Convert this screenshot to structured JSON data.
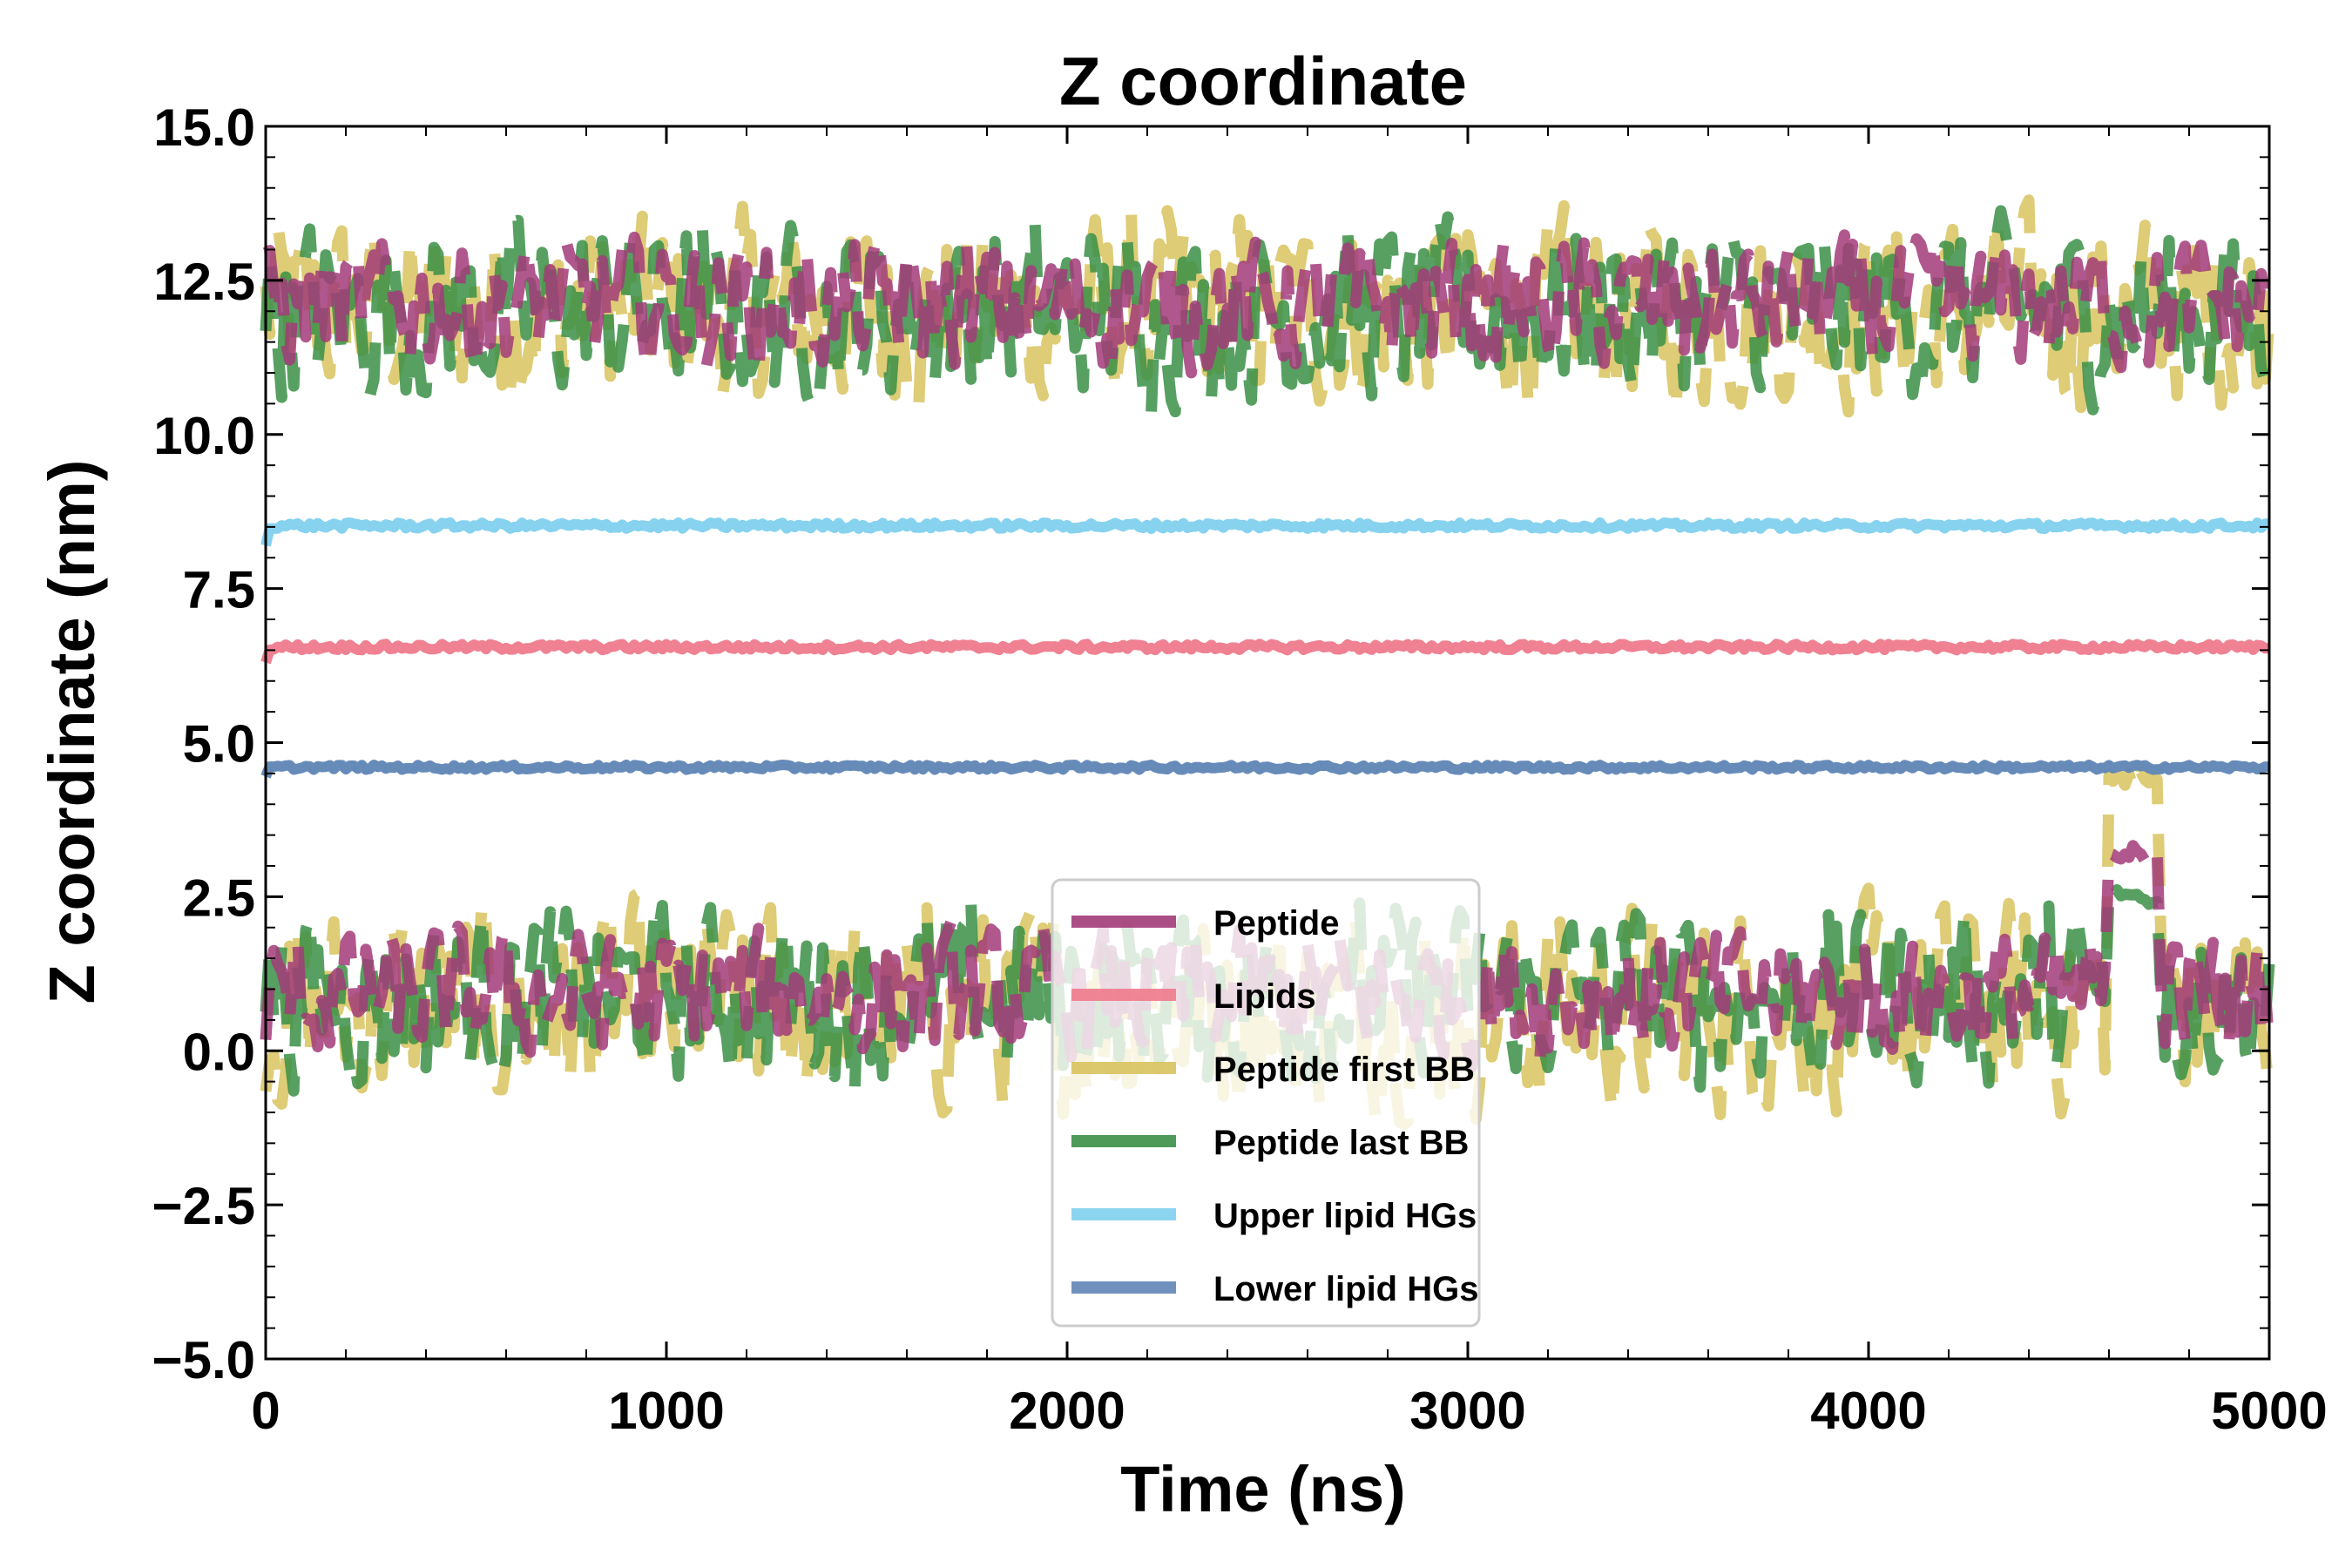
{
  "chart_data": {
    "type": "line",
    "title": "Z coordinate",
    "xlabel": "Time (ns)",
    "ylabel": "Z coordinate (nm)",
    "xlim": [
      0,
      5000
    ],
    "ylim": [
      -5.0,
      15.0
    ],
    "xticks": [
      0,
      1000,
      2000,
      3000,
      4000,
      5000
    ],
    "xtick_labels": [
      "0",
      "1000",
      "2000",
      "3000",
      "4000",
      "5000"
    ],
    "yticks": [
      -5.0,
      -2.5,
      0.0,
      2.5,
      5.0,
      7.5,
      10.0,
      12.5,
      15.0
    ],
    "ytick_labels": [
      "−5.0",
      "−2.5",
      "0.0",
      "2.5",
      "5.0",
      "7.5",
      "10.0",
      "12.5",
      "15.0"
    ],
    "grid": false,
    "legend_position": "lower-center",
    "series": [
      {
        "name": "Peptide",
        "color": "#a23b79",
        "style": "dashed",
        "bands": [
          {
            "mean": 12.1,
            "amp": 0.8
          },
          {
            "mean": 0.9,
            "amp": 0.8
          }
        ],
        "event": {
          "x0": 4600,
          "x1": 4720,
          "value": 3.2
        }
      },
      {
        "name": "Lipids",
        "color": "#ee7a8c",
        "style": "solid",
        "mean": 6.55,
        "jitter": 0.05,
        "start": 6.3
      },
      {
        "name": "Peptide first BB",
        "color": "#d8c35e",
        "style": "dashed",
        "bands": [
          {
            "mean": 12.0,
            "amp": 1.2
          },
          {
            "mean": 0.7,
            "amp": 1.3
          }
        ],
        "event": {
          "x0": 4600,
          "x1": 4720,
          "value": 4.4
        }
      },
      {
        "name": "Peptide last BB",
        "color": "#3a8f47",
        "style": "dashed",
        "bands": [
          {
            "mean": 12.0,
            "amp": 1.1
          },
          {
            "mean": 0.9,
            "amp": 1.1
          }
        ],
        "event": {
          "x0": 4600,
          "x1": 4720,
          "value": 2.5
        }
      },
      {
        "name": "Upper lipid HGs",
        "color": "#7fd0ee",
        "style": "solid",
        "mean": 8.52,
        "jitter": 0.05,
        "start": 8.2
      },
      {
        "name": "Lower lipid HGs",
        "color": "#5f85b5",
        "style": "solid",
        "mean": 4.6,
        "jitter": 0.04,
        "start": 4.45
      }
    ]
  }
}
